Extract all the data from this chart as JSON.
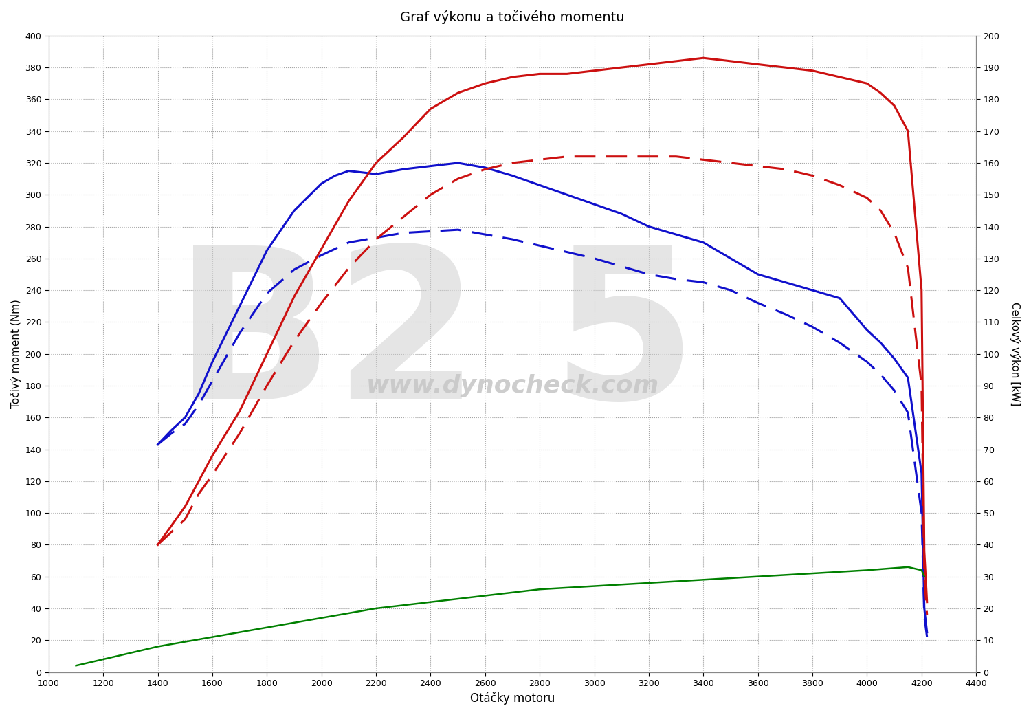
{
  "title": "Graf výkonu a točivého momentu",
  "xlabel": "Otáčky motoru",
  "ylabel_left": "Točivý moment (Nm)",
  "ylabel_right": "Celkový výkon [kW]",
  "xlim": [
    1000,
    4400
  ],
  "ylim_left": [
    0,
    400
  ],
  "ylim_right": [
    0,
    200
  ],
  "xticks": [
    1000,
    1200,
    1400,
    1600,
    1800,
    2000,
    2200,
    2400,
    2600,
    2800,
    3000,
    3200,
    3400,
    3600,
    3800,
    4000,
    4200,
    4400
  ],
  "yticks_left": [
    0,
    20,
    40,
    60,
    80,
    100,
    120,
    140,
    160,
    180,
    200,
    220,
    240,
    260,
    280,
    300,
    320,
    340,
    360,
    380,
    400
  ],
  "yticks_right": [
    0,
    10,
    20,
    30,
    40,
    50,
    60,
    70,
    80,
    90,
    100,
    110,
    120,
    130,
    140,
    150,
    160,
    170,
    180,
    190,
    200
  ],
  "blue_solid_x": [
    1400,
    1450,
    1500,
    1550,
    1600,
    1700,
    1800,
    1900,
    2000,
    2050,
    2100,
    2200,
    2300,
    2400,
    2500,
    2600,
    2700,
    2800,
    2900,
    3000,
    3100,
    3200,
    3300,
    3400,
    3500,
    3600,
    3700,
    3800,
    3900,
    4000,
    4050,
    4100,
    4150,
    4200,
    4210,
    4220
  ],
  "blue_solid_y": [
    143,
    152,
    160,
    175,
    195,
    230,
    265,
    290,
    307,
    312,
    315,
    313,
    316,
    318,
    320,
    317,
    312,
    306,
    300,
    294,
    288,
    280,
    275,
    270,
    260,
    250,
    245,
    240,
    235,
    215,
    207,
    197,
    185,
    125,
    40,
    25
  ],
  "blue_dashed_x": [
    1400,
    1450,
    1500,
    1550,
    1600,
    1700,
    1800,
    1900,
    2000,
    2050,
    2100,
    2200,
    2300,
    2400,
    2500,
    2600,
    2700,
    2800,
    2900,
    3000,
    3100,
    3200,
    3300,
    3400,
    3500,
    3600,
    3700,
    3800,
    3900,
    4000,
    4050,
    4100,
    4150,
    4200,
    4210,
    4220
  ],
  "blue_dashed_y": [
    143,
    150,
    156,
    168,
    183,
    213,
    238,
    253,
    262,
    266,
    270,
    273,
    276,
    277,
    278,
    275,
    272,
    268,
    264,
    260,
    255,
    250,
    247,
    245,
    240,
    232,
    225,
    217,
    207,
    195,
    187,
    177,
    163,
    100,
    35,
    22
  ],
  "red_solid_x": [
    1400,
    1450,
    1500,
    1550,
    1600,
    1700,
    1800,
    1900,
    2000,
    2100,
    2200,
    2300,
    2400,
    2500,
    2600,
    2700,
    2800,
    2900,
    3000,
    3100,
    3200,
    3300,
    3400,
    3500,
    3600,
    3700,
    3800,
    3900,
    4000,
    4050,
    4100,
    4150,
    4200,
    4210,
    4220
  ],
  "red_solid_y": [
    40,
    46,
    52,
    60,
    68,
    82,
    100,
    118,
    133,
    148,
    160,
    168,
    177,
    182,
    185,
    187,
    188,
    188,
    189,
    190,
    191,
    192,
    193,
    192,
    191,
    190,
    189,
    187,
    185,
    182,
    178,
    170,
    120,
    38,
    22
  ],
  "red_dashed_x": [
    1400,
    1450,
    1500,
    1550,
    1600,
    1700,
    1800,
    1900,
    2000,
    2100,
    2200,
    2300,
    2400,
    2500,
    2600,
    2700,
    2800,
    2900,
    3000,
    3100,
    3200,
    3300,
    3400,
    3500,
    3600,
    3700,
    3800,
    3900,
    4000,
    4050,
    4100,
    4150,
    4200,
    4210,
    4220
  ],
  "red_dashed_y": [
    40,
    44,
    48,
    56,
    62,
    75,
    90,
    104,
    116,
    127,
    136,
    143,
    150,
    155,
    158,
    160,
    161,
    162,
    162,
    162,
    162,
    162,
    161,
    160,
    159,
    158,
    156,
    153,
    149,
    145,
    138,
    127,
    90,
    30,
    18
  ],
  "green_solid_x": [
    1100,
    1200,
    1400,
    1600,
    1800,
    2000,
    2200,
    2400,
    2600,
    2800,
    3000,
    3200,
    3400,
    3600,
    3800,
    4000,
    4150,
    4200,
    4210
  ],
  "green_solid_y": [
    2,
    4,
    8,
    11,
    14,
    17,
    20,
    22,
    24,
    26,
    27,
    28,
    29,
    30,
    31,
    32,
    33,
    32,
    30
  ],
  "blue_solid_color": "#1010cc",
  "blue_dashed_color": "#1010cc",
  "red_solid_color": "#cc1010",
  "red_dashed_color": "#cc1010",
  "green_solid_color": "#008000",
  "background_color": "#ffffff",
  "grid_major_color": "#999999",
  "grid_minor_color": "#cccccc",
  "watermark_text": "www.dynocheck.com",
  "watermark_color": "#c8c8c8",
  "bg_number_color": "#d0d0d0",
  "spine_color": "#888888"
}
